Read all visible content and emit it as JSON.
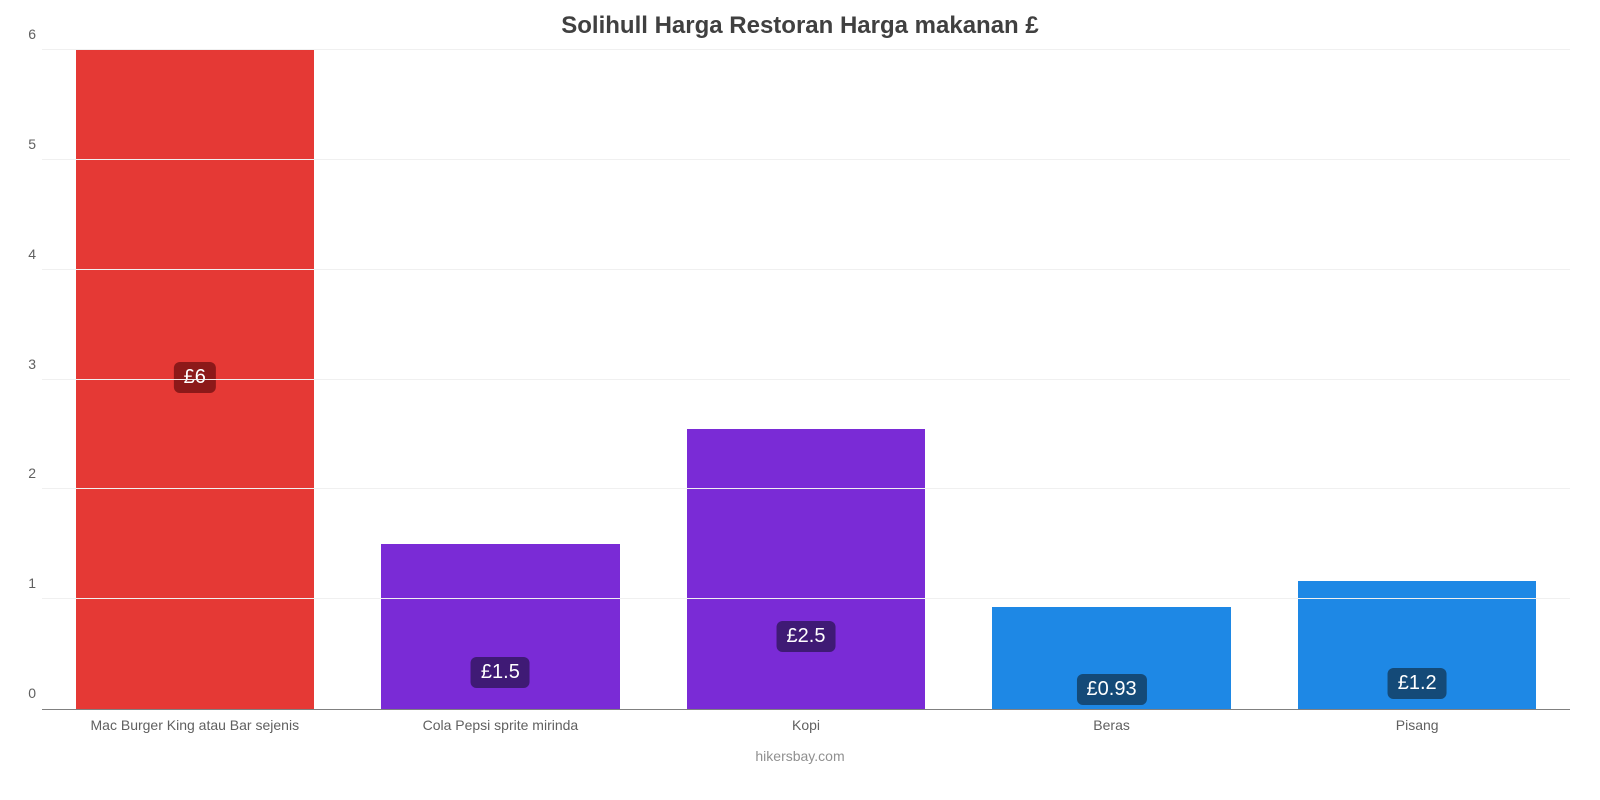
{
  "chart": {
    "type": "bar",
    "title": "Solihull Harga Restoran Harga makanan £",
    "title_fontsize": 24,
    "title_color": "#404040",
    "background_color": "#ffffff",
    "grid_color": "#f0f0f0",
    "axis_color": "#808080",
    "xlabel_color": "#606060",
    "ytick_color": "#606060",
    "tick_fontsize": 14,
    "ylim": [
      0,
      6
    ],
    "ytick_step": 1,
    "bar_width_ratio": 0.78,
    "categories": [
      "Mac Burger King atau Bar sejenis",
      "Cola Pepsi sprite mirinda",
      "Kopi",
      "Beras",
      "Pisang"
    ],
    "values": [
      6,
      1.5,
      2.55,
      0.93,
      1.17
    ],
    "bar_colors": [
      "#e53935",
      "#7a2bd6",
      "#7a2bd6",
      "#1e88e5",
      "#1e88e5"
    ],
    "value_labels": [
      "£6",
      "£1.5",
      "£2.5",
      "£0.93",
      "£1.2"
    ],
    "badge_colors": [
      "#8c1919",
      "#3f1a75",
      "#3f1a75",
      "#144a78",
      "#144a78"
    ],
    "badge_fontsize": 20,
    "source": "hikersbay.com",
    "source_color": "#909090",
    "source_fontsize": 14
  }
}
